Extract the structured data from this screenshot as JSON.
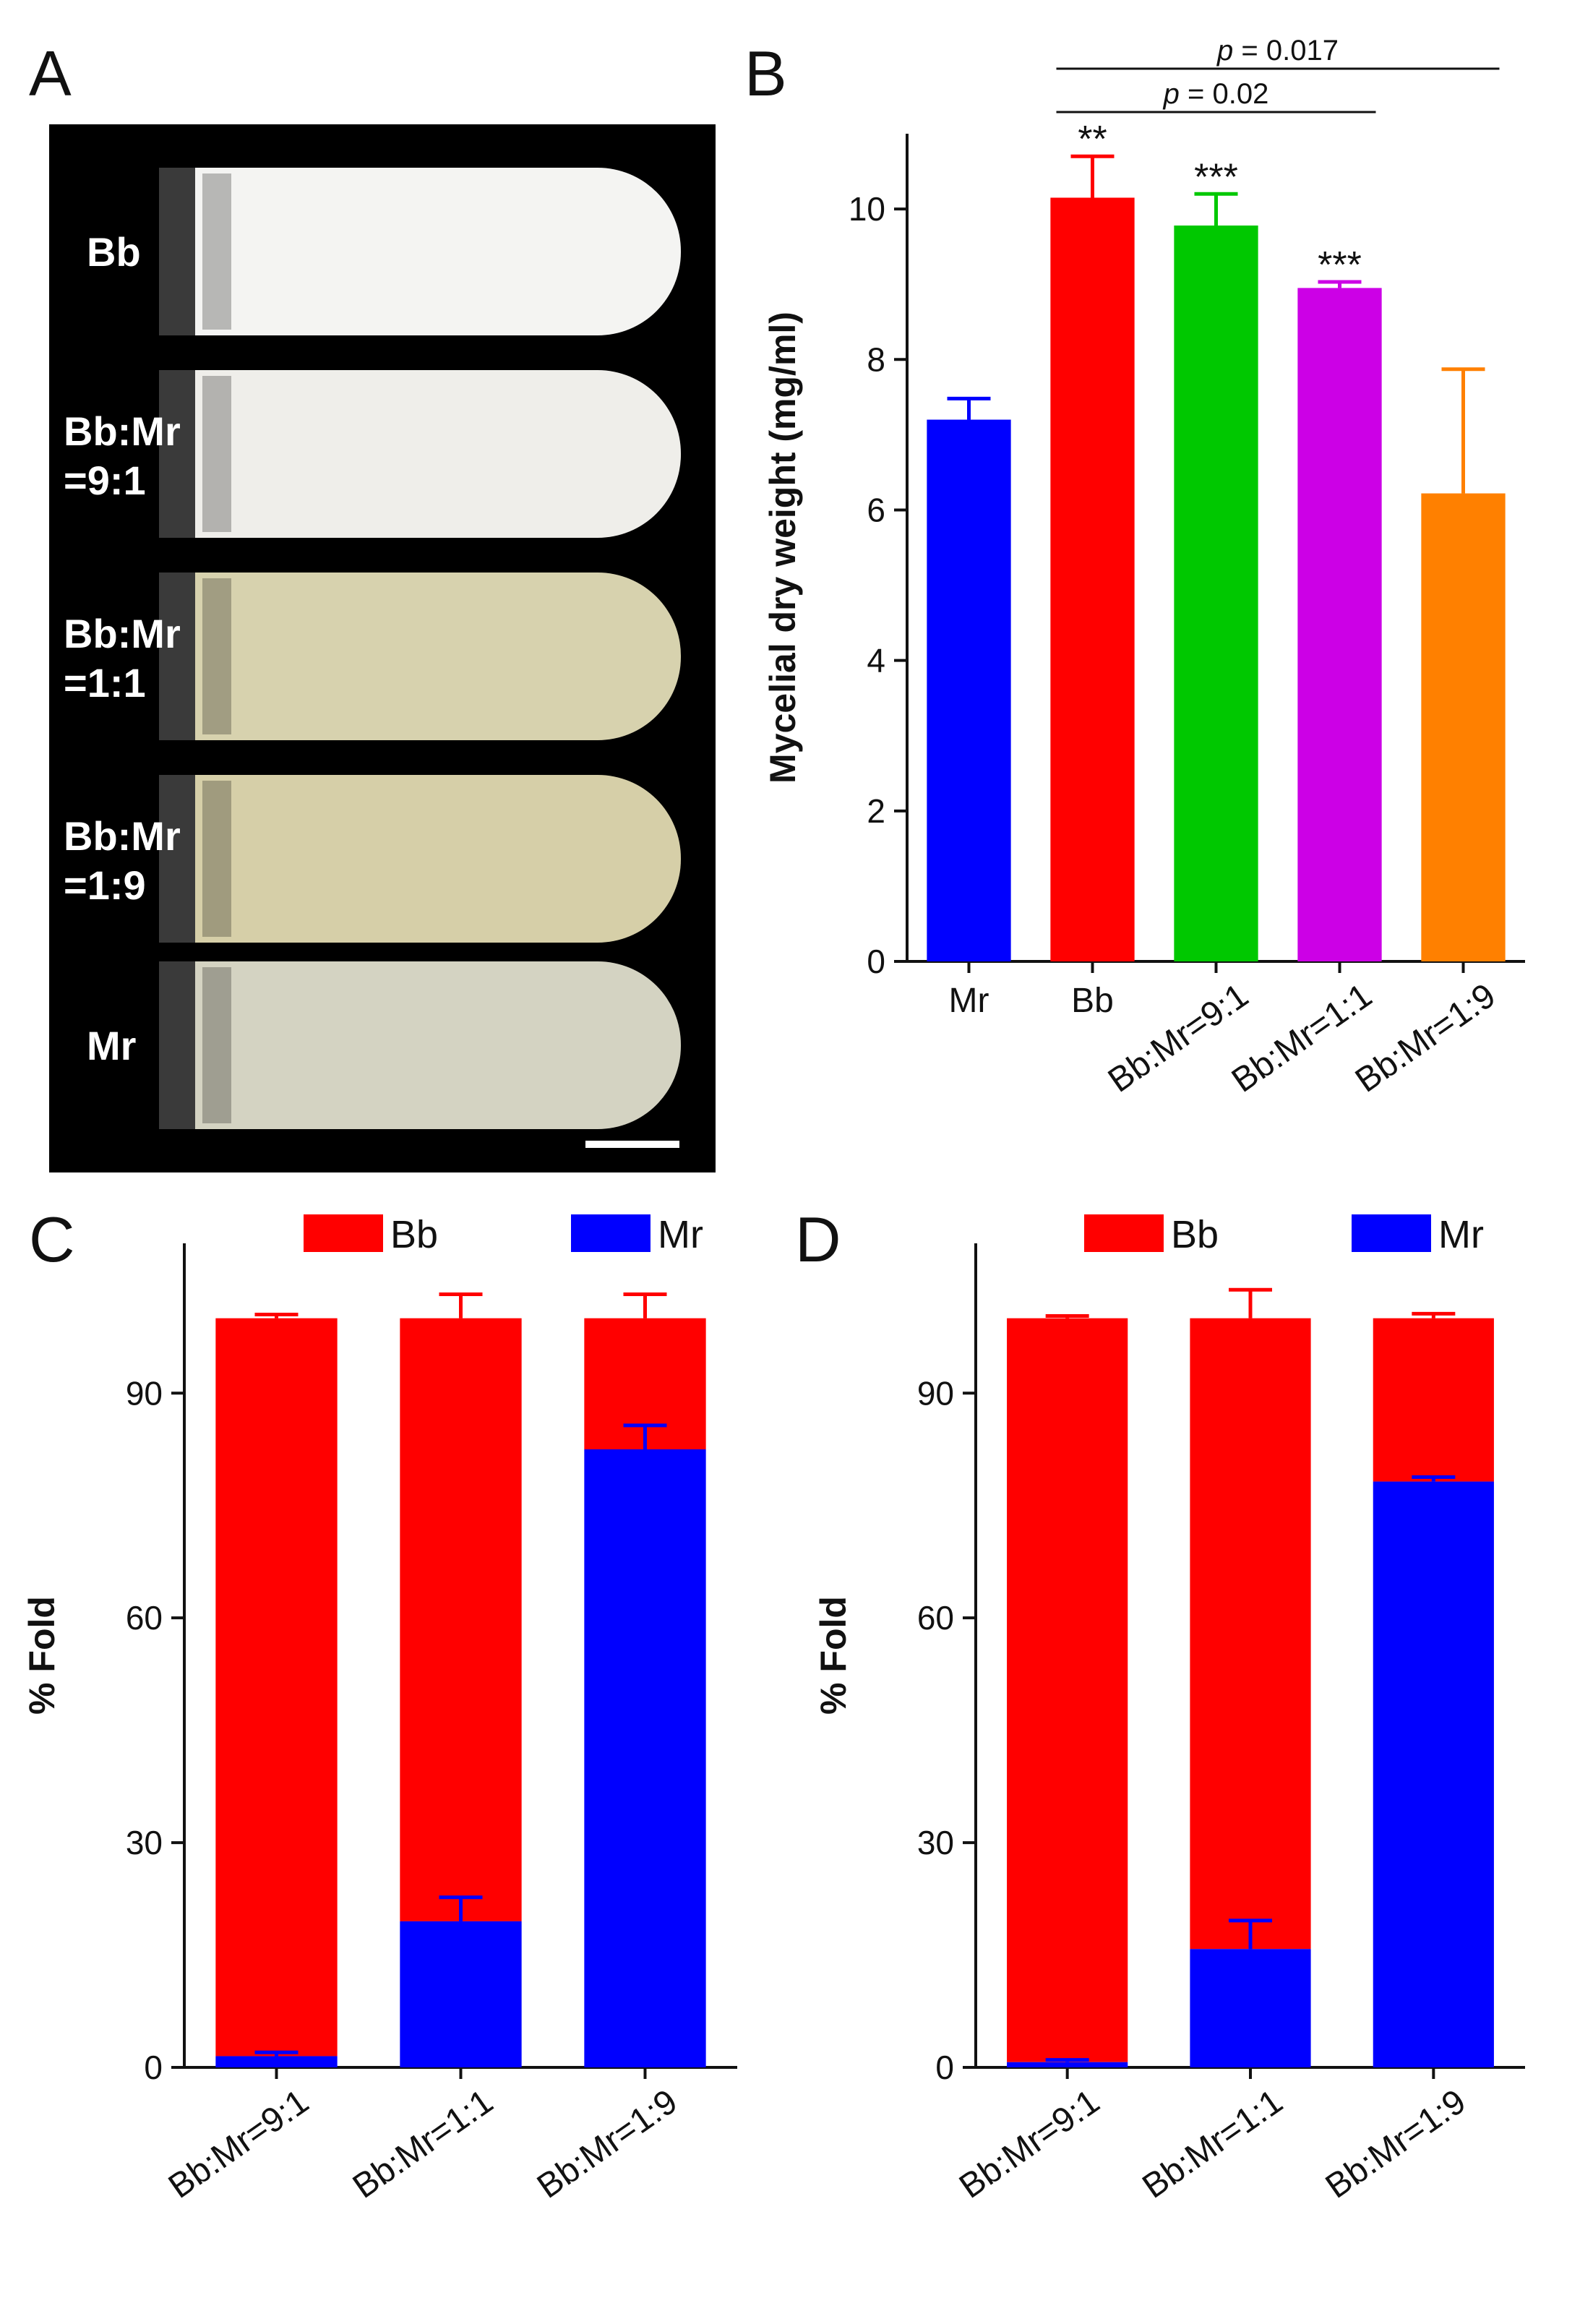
{
  "panels": {
    "a": "A",
    "b": "B",
    "c": "C",
    "d": "D"
  },
  "photo": {
    "tubes": [
      {
        "lines": [
          "Bb"
        ],
        "color": "#f4f4f2"
      },
      {
        "lines": [
          "Bb:Mr",
          "=9:1"
        ],
        "color": "#efeeea"
      },
      {
        "lines": [
          "Bb:Mr",
          "=1:1"
        ],
        "color": "#d7d2ae"
      },
      {
        "lines": [
          "Bb:Mr",
          "=1:9"
        ],
        "color": "#d6cfa8"
      },
      {
        "lines": [
          "Mr"
        ],
        "color": "#d4d3c2"
      }
    ]
  },
  "chart_data": [
    {
      "panel": "B",
      "type": "bar",
      "categories": [
        "Mr",
        "Bb",
        "Bb:Mr=9:1",
        "Bb:Mr=1:1",
        "Bb:Mr=1:9"
      ],
      "values": [
        7.2,
        10.15,
        9.78,
        8.95,
        6.22
      ],
      "errors": [
        0.28,
        0.55,
        0.42,
        0.08,
        1.65
      ],
      "colors": [
        "#0000ff",
        "#ff0000",
        "#00c800",
        "#cc00e6",
        "#ff8000"
      ],
      "significance": [
        "",
        "**",
        "***",
        "***",
        ""
      ],
      "ylabel": "Mycelial dry weight (mg/ml)",
      "ylim": [
        0,
        11
      ],
      "yticks": [
        0,
        2,
        4,
        6,
        8,
        10
      ],
      "comparisons": [
        {
          "from": 1,
          "to": 3,
          "label_p": "p",
          "label_value": " = 0.02"
        },
        {
          "from": 1,
          "to": 4,
          "label_p": "p",
          "label_value": " = 0.017"
        }
      ]
    },
    {
      "panel": "C",
      "type": "bar",
      "stacked": true,
      "categories": [
        "Bb:Mr=9:1",
        "Bb:Mr=1:1",
        "Bb:Mr=1:9"
      ],
      "series": [
        {
          "name": "Mr",
          "color": "#0000ff",
          "values": [
            1.5,
            19.5,
            82.5
          ],
          "errors": [
            0.5,
            3.2,
            3.2
          ]
        },
        {
          "name": "Bb",
          "color": "#ff0000",
          "values": [
            98.5,
            80.5,
            17.5
          ],
          "errors": [
            0.5,
            3.2,
            3.2
          ]
        }
      ],
      "legend": [
        "Bb",
        "Mr"
      ],
      "ylabel": "% Fold",
      "ylim": [
        0,
        110
      ],
      "yticks": [
        0,
        30,
        60,
        90
      ]
    },
    {
      "panel": "D",
      "type": "bar",
      "stacked": true,
      "categories": [
        "Bb:Mr=9:1",
        "Bb:Mr=1:1",
        "Bb:Mr=1:9"
      ],
      "series": [
        {
          "name": "Mr",
          "color": "#0000ff",
          "values": [
            0.7,
            15.8,
            78.2
          ],
          "errors": [
            0.3,
            3.8,
            0.6
          ]
        },
        {
          "name": "Bb",
          "color": "#ff0000",
          "values": [
            99.3,
            84.2,
            21.8
          ],
          "errors": [
            0.3,
            3.8,
            0.6
          ]
        }
      ],
      "legend": [
        "Bb",
        "Mr"
      ],
      "ylabel": "% Fold",
      "ylim": [
        0,
        110
      ],
      "yticks": [
        0,
        30,
        60,
        90
      ]
    }
  ]
}
